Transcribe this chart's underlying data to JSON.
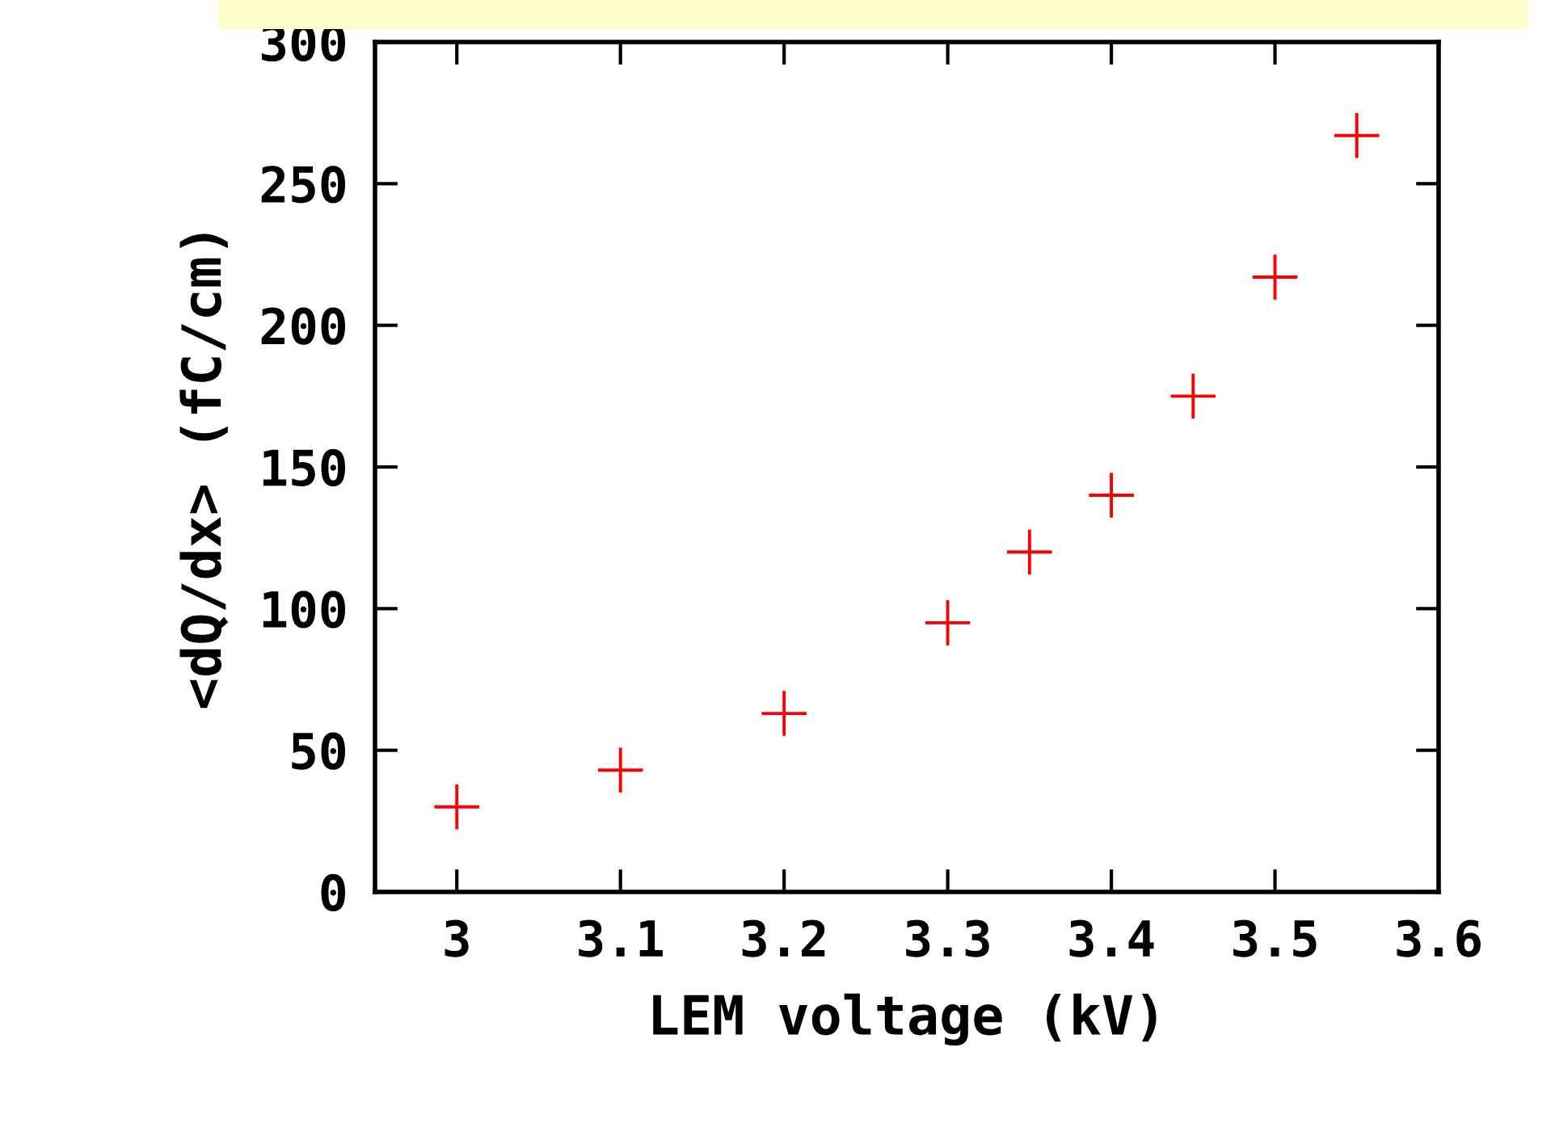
{
  "chart_data": {
    "type": "scatter",
    "xlabel": "LEM voltage (kV)",
    "ylabel": "<dQ/dx> (fC/cm)",
    "x": [
      3,
      3.1,
      3.2,
      3.3,
      3.35,
      3.4,
      3.45,
      3.5,
      3.55
    ],
    "series": [
      {
        "color": "#ff0000",
        "values": [
          30,
          43,
          63,
          95,
          120,
          140,
          175,
          217,
          267
        ]
      }
    ],
    "marker": "cross",
    "xlim": [
      2.95,
      3.6
    ],
    "ylim": [
      0,
      300
    ],
    "xticks": [
      3,
      3.1,
      3.2,
      3.3,
      3.4,
      3.5,
      3.6
    ],
    "yticks": [
      0,
      50,
      100,
      150,
      200,
      250,
      300
    ],
    "grid": false,
    "legend": false
  }
}
